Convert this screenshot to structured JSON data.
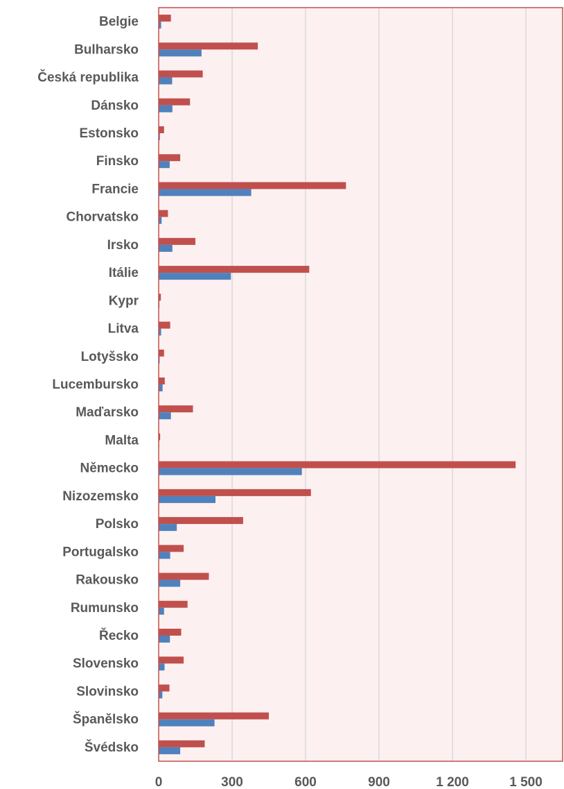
{
  "chart_data": {
    "type": "bar",
    "orientation": "horizontal",
    "title": "",
    "xlabel": "",
    "ylabel": "",
    "xlim": [
      0,
      1650
    ],
    "x_ticks": [
      0,
      300,
      600,
      900,
      1200,
      1500
    ],
    "x_tick_labels": [
      "0",
      "300",
      "600",
      "900",
      "1 200",
      "1 500"
    ],
    "grid": true,
    "legend": "none",
    "categories": [
      "Belgie",
      "Bulharsko",
      "Česká republika",
      "Dánsko",
      "Estonsko",
      "Finsko",
      "Francie",
      "Chorvatsko",
      "Irsko",
      "Itálie",
      "Kypr",
      "Litva",
      "Lotyšsko",
      "Lucembursko",
      "Maďarsko",
      "Malta",
      "Německo",
      "Nizozemsko",
      "Polsko",
      "Portugalsko",
      "Rakousko",
      "Rumunsko",
      "Řecko",
      "Slovensko",
      "Slovinsko",
      "Španělsko",
      "Švédsko"
    ],
    "series": [
      {
        "color": "#c0504d",
        "values": [
          50,
          405,
          180,
          128,
          22,
          88,
          765,
          38,
          150,
          615,
          9,
          47,
          22,
          25,
          140,
          6,
          1458,
          622,
          345,
          102,
          205,
          118,
          92,
          102,
          44,
          450,
          188
        ]
      },
      {
        "color": "#4f81bd",
        "values": [
          10,
          175,
          55,
          56,
          5,
          45,
          378,
          12,
          56,
          295,
          3,
          10,
          4,
          16,
          50,
          2,
          585,
          232,
          74,
          47,
          88,
          22,
          46,
          24,
          15,
          228,
          88
        ]
      }
    ]
  },
  "colors": {
    "plot_background": "#fdf0f0",
    "plot_border": "#c0504d",
    "gridline": "#d9d9d9",
    "text": "#595959"
  }
}
